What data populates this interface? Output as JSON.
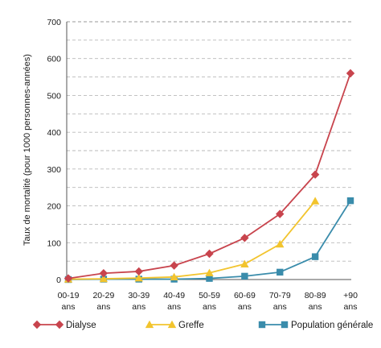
{
  "chart_data": {
    "type": "line",
    "title": "",
    "xlabel": "",
    "ylabel": "Taux de mortalité (pour 1000 personnes-années)",
    "ylim": [
      0,
      700
    ],
    "yticks": [
      0,
      100,
      200,
      300,
      400,
      500,
      600,
      700
    ],
    "grid": "horizontal-dashed",
    "legend_position": "bottom",
    "categories": [
      [
        "00-19",
        "ans"
      ],
      [
        "20-29",
        "ans"
      ],
      [
        "30-39",
        "ans"
      ],
      [
        "40-49",
        "ans"
      ],
      [
        "50-59",
        "ans"
      ],
      [
        "60-69",
        "ans"
      ],
      [
        "70-79",
        "ans"
      ],
      [
        "80-89",
        "ans"
      ],
      [
        "+90",
        "ans"
      ]
    ],
    "series": [
      {
        "name": "Dialyse",
        "color": "#c8444d",
        "marker": "diamond",
        "values": [
          3,
          17,
          22,
          38,
          70,
          113,
          178,
          285,
          560
        ]
      },
      {
        "name": "Greffe",
        "color": "#f2c42e",
        "marker": "triangle",
        "values": [
          1,
          2,
          4,
          7,
          18,
          42,
          96,
          213,
          null
        ]
      },
      {
        "name": "Population générale",
        "color": "#3a8cab",
        "marker": "square",
        "values": [
          0,
          1,
          1,
          1,
          3,
          9,
          20,
          62,
          214
        ]
      }
    ]
  }
}
